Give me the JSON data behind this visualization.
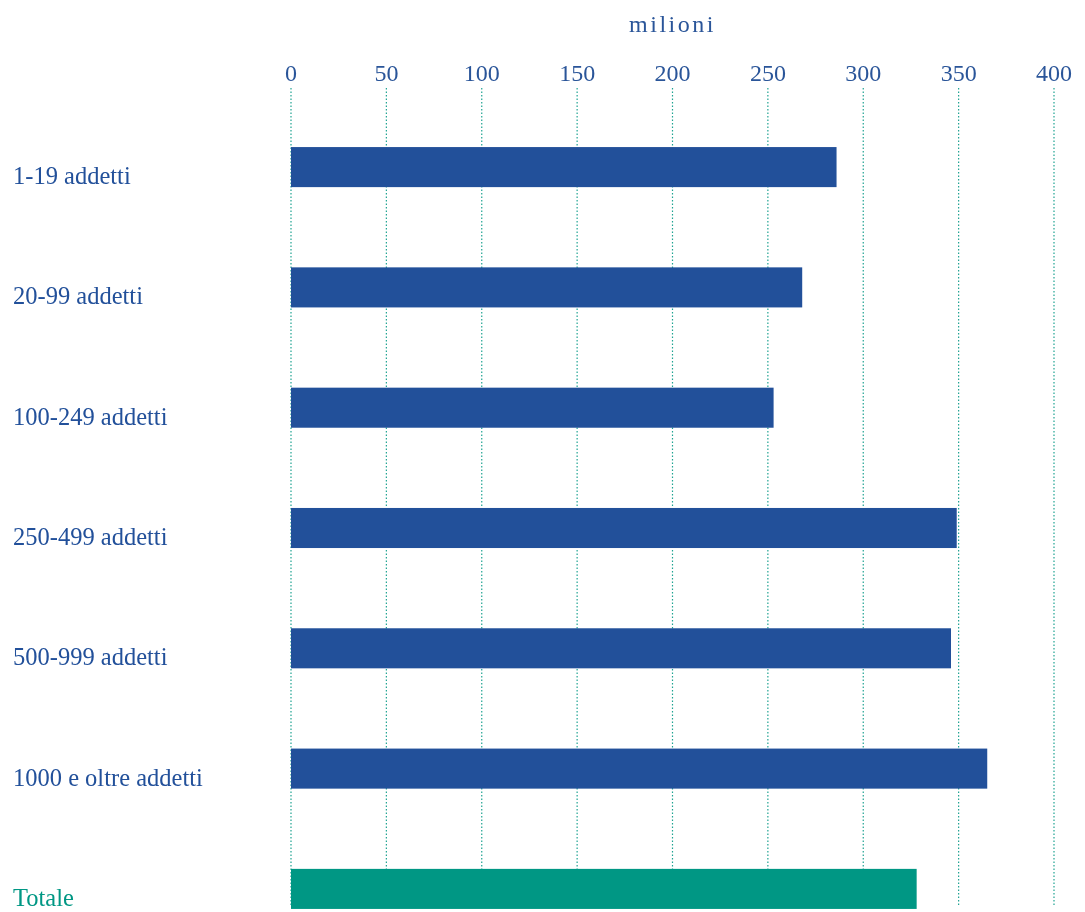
{
  "chart_data": {
    "type": "bar",
    "orientation": "horizontal",
    "xlabel": "milioni",
    "categories": [
      "1-19 addetti",
      "20-99 addetti",
      "100-249 addetti",
      "250-499 addetti",
      "500-999 addetti",
      "1000 e oltre addetti",
      "Totale"
    ],
    "values": [
      286,
      268,
      253,
      349,
      346,
      365,
      328
    ],
    "colors": [
      "#22509a",
      "#22509a",
      "#22509a",
      "#22509a",
      "#22509a",
      "#22509a",
      "#009784"
    ],
    "xlim": [
      0,
      400
    ],
    "xticks": [
      0,
      50,
      100,
      150,
      200,
      250,
      300,
      350,
      400
    ],
    "grid": "x"
  }
}
